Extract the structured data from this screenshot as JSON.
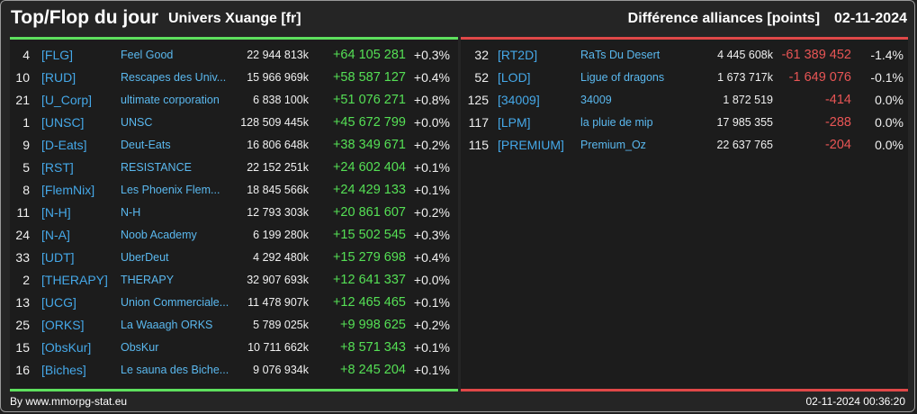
{
  "header": {
    "title": "Top/Flop du jour",
    "universe": "Univers Xuange [fr]",
    "metric": "Différence alliances [points]",
    "date": "02-11-2024"
  },
  "colors": {
    "top_accent": "#5ee05e",
    "flop_accent": "#e04848",
    "tag_blue": "#45a8e8",
    "name_blue": "#5ab8ee",
    "positive": "#55e055",
    "negative": "#e85555"
  },
  "top": [
    {
      "rank": "4",
      "tag": "[FLG]",
      "name": "Feel Good",
      "points": "22 944 813k",
      "diff": "+64 105 281",
      "pct": "+0.3%"
    },
    {
      "rank": "10",
      "tag": "[RUD]",
      "name": "Rescapes des Univ...",
      "points": "15 966 969k",
      "diff": "+58 587 127",
      "pct": "+0.4%"
    },
    {
      "rank": "21",
      "tag": "[U_Corp]",
      "name": "ultimate corporation",
      "points": "6 838 100k",
      "diff": "+51 076 271",
      "pct": "+0.8%"
    },
    {
      "rank": "1",
      "tag": "[UNSC]",
      "name": "UNSC",
      "points": "128 509 445k",
      "diff": "+45 672 799",
      "pct": "+0.0%"
    },
    {
      "rank": "9",
      "tag": "[D-Eats]",
      "name": "Deut-Eats",
      "points": "16 806 648k",
      "diff": "+38 349 671",
      "pct": "+0.2%"
    },
    {
      "rank": "5",
      "tag": "[RST]",
      "name": "RESISTANCE",
      "points": "22 152 251k",
      "diff": "+24 602 404",
      "pct": "+0.1%"
    },
    {
      "rank": "8",
      "tag": "[FlemNix]",
      "name": "Les Phoenix Flem...",
      "points": "18 845 566k",
      "diff": "+24 429 133",
      "pct": "+0.1%"
    },
    {
      "rank": "11",
      "tag": "[N-H]",
      "name": "N-H",
      "points": "12 793 303k",
      "diff": "+20 861 607",
      "pct": "+0.2%"
    },
    {
      "rank": "24",
      "tag": "[N-A]",
      "name": "Noob Academy",
      "points": "6 199 280k",
      "diff": "+15 502 545",
      "pct": "+0.3%"
    },
    {
      "rank": "33",
      "tag": "[UDT]",
      "name": "UberDeut",
      "points": "4 292 480k",
      "diff": "+15 279 698",
      "pct": "+0.4%"
    },
    {
      "rank": "2",
      "tag": "[THERAPY]",
      "name": "THERAPY",
      "points": "32 907 693k",
      "diff": "+12 641 337",
      "pct": "+0.0%"
    },
    {
      "rank": "13",
      "tag": "[UCG]",
      "name": "Union Commerciale...",
      "points": "11 478 907k",
      "diff": "+12 465 465",
      "pct": "+0.1%"
    },
    {
      "rank": "25",
      "tag": "[ORKS]",
      "name": "La Waaagh ORKS",
      "points": "5 789 025k",
      "diff": "+9 998 625",
      "pct": "+0.2%"
    },
    {
      "rank": "15",
      "tag": "[ObsKur]",
      "name": "ObsKur",
      "points": "10 711 662k",
      "diff": "+8 571 343",
      "pct": "+0.1%"
    },
    {
      "rank": "16",
      "tag": "[Biches]",
      "name": "Le sauna des Biche...",
      "points": "9 076 934k",
      "diff": "+8 245 204",
      "pct": "+0.1%"
    }
  ],
  "flop": [
    {
      "rank": "32",
      "tag": "[RT2D]",
      "name": "RaTs Du Desert",
      "points": "4 445 608k",
      "diff": "-61 389 452",
      "pct": "-1.4%"
    },
    {
      "rank": "52",
      "tag": "[LOD]",
      "name": "Ligue of dragons",
      "points": "1 673 717k",
      "diff": "-1 649 076",
      "pct": "-0.1%"
    },
    {
      "rank": "125",
      "tag": "[34009]",
      "name": "34009",
      "points": "1 872 519",
      "diff": "-414",
      "pct": "0.0%"
    },
    {
      "rank": "117",
      "tag": "[LPM]",
      "name": "la pluie de mip",
      "points": "17 985 355",
      "diff": "-288",
      "pct": "0.0%"
    },
    {
      "rank": "115",
      "tag": "[PREMIUM]",
      "name": "Premium_Oz",
      "points": "22 637 765",
      "diff": "-204",
      "pct": "0.0%"
    }
  ],
  "footer": {
    "source": "By www.mmorpg-stat.eu",
    "timestamp": "02-11-2024 00:36:20"
  }
}
